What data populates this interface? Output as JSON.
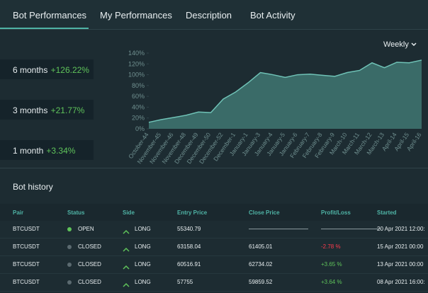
{
  "tabs": [
    "Bot Performances",
    "My Performances",
    "Description",
    "Bot Activity"
  ],
  "performance": [
    {
      "period": "6 months",
      "change": "+126.22%"
    },
    {
      "period": "3 months",
      "change": "+21.77%"
    },
    {
      "period": "1 month",
      "change": "+3.34%"
    }
  ],
  "dropdown": "Weekly",
  "chart_data": {
    "type": "area",
    "categories": [
      "October-44",
      "November-45",
      "November-46",
      "November-48",
      "December-49",
      "December-50",
      "December-52",
      "December-1",
      "January-1",
      "January-3",
      "January-4",
      "January-5",
      "January-6",
      "February-7",
      "February-8",
      "February-9",
      "March-10",
      "March-11",
      "March-12",
      "March-13",
      "April-14",
      "April-15",
      "April-16"
    ],
    "values": [
      12,
      17,
      21,
      25,
      31,
      30,
      55,
      68,
      85,
      104,
      100,
      95,
      100,
      101,
      99,
      97,
      104,
      108,
      122,
      113,
      123,
      122,
      127
    ],
    "color": "#6fc2b6",
    "fill": "#3a6b68",
    "ylim": [
      0,
      140
    ],
    "yticks": [
      {
        "value": 0,
        "label": "0%"
      },
      {
        "value": 20,
        "label": "20%"
      },
      {
        "value": 40,
        "label": "40%"
      },
      {
        "value": 60,
        "label": "60%"
      },
      {
        "value": 80,
        "label": "80%"
      },
      {
        "value": 100,
        "label": "100%"
      },
      {
        "value": 120,
        "label": "120%"
      },
      {
        "value": 140,
        "label": "140%"
      }
    ]
  },
  "history": {
    "title": "Bot history",
    "columns": [
      "Pair",
      "Status",
      "Side",
      "Entry Price",
      "Close Price",
      "Profit/Loss",
      "Started"
    ],
    "rows": [
      {
        "pair": "BTCUSDT",
        "status": "OPEN",
        "status_color": "#5fc35a",
        "side": "LONG",
        "entry": "55340.79",
        "close": null,
        "pl": null,
        "pl_color": "#e8eef0",
        "started": "20 Apr 2021 12:00:"
      },
      {
        "pair": "BTCUSDT",
        "status": "CLOSED",
        "status_color": "#5b6a70",
        "side": "LONG",
        "entry": "63158.04",
        "close": "61405.01",
        "pl": "-2.78 %",
        "pl_color": "#ff3b4e",
        "started": "15 Apr 2021 00:00"
      },
      {
        "pair": "BTCUSDT",
        "status": "CLOSED",
        "status_color": "#5b6a70",
        "side": "LONG",
        "entry": "60516.91",
        "close": "62734.02",
        "pl": "+3.65 %",
        "pl_color": "#5fc35a",
        "started": "13 Apr 2021 00:00"
      },
      {
        "pair": "BTCUSDT",
        "status": "CLOSED",
        "status_color": "#5b6a70",
        "side": "LONG",
        "entry": "57755",
        "close": "59859.52",
        "pl": "+3.64 %",
        "pl_color": "#5fc35a",
        "started": "08 Apr 2021 16:00:"
      }
    ]
  }
}
